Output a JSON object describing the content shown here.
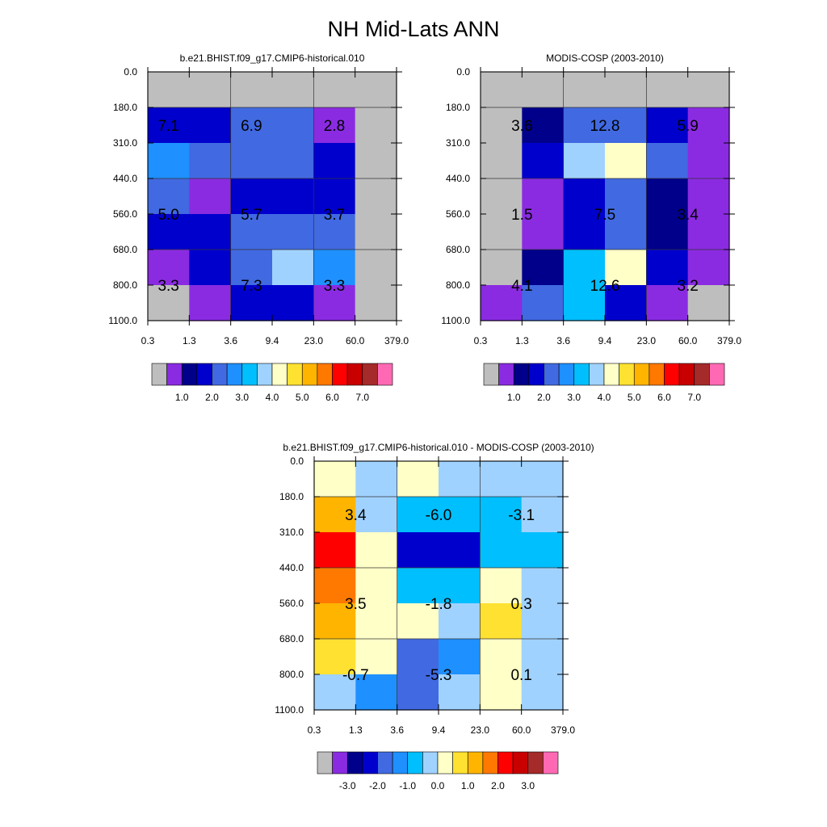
{
  "title": "NH Mid-Lats ANN",
  "chart_data": [
    {
      "type": "heatmap",
      "id": "model",
      "title": "b.e21.BHIST.f09_g17.CMIP6-historical.010",
      "xlabel": "",
      "ylabel": "",
      "x_tick_labels": [
        "0.3",
        "1.3",
        "3.6",
        "9.4",
        "23.0",
        "60.0",
        "379.0"
      ],
      "y_tick_labels": [
        "0.0",
        "180.0",
        "310.0",
        "440.0",
        "560.0",
        "680.0",
        "800.0",
        "1100.0"
      ],
      "cell_color_index": [
        [
          0,
          0,
          0,
          0,
          0,
          0
        ],
        [
          3,
          3,
          4,
          4,
          1,
          0
        ],
        [
          5,
          4,
          4,
          4,
          3,
          0
        ],
        [
          4,
          1,
          3,
          3,
          3,
          0
        ],
        [
          3,
          3,
          4,
          4,
          4,
          0
        ],
        [
          1,
          3,
          4,
          7,
          5,
          0
        ],
        [
          0,
          1,
          3,
          3,
          1,
          0
        ]
      ],
      "value_labels": [
        {
          "text": "7.1",
          "col": 0.5,
          "row": 1.5
        },
        {
          "text": "6.9",
          "col": 2.5,
          "row": 1.5
        },
        {
          "text": "2.8",
          "col": 4.5,
          "row": 1.5
        },
        {
          "text": "5.0",
          "col": 0.5,
          "row": 4.0
        },
        {
          "text": "5.7",
          "col": 2.5,
          "row": 4.0
        },
        {
          "text": "3.7",
          "col": 4.5,
          "row": 4.0
        },
        {
          "text": "3.3",
          "col": 0.5,
          "row": 6.0
        },
        {
          "text": "7.3",
          "col": 2.5,
          "row": 6.0
        },
        {
          "text": "3.3",
          "col": 4.5,
          "row": 6.0
        }
      ],
      "colorbar": {
        "colors": [
          "#bebebe",
          "#8a2be2",
          "#00008b",
          "#0000cd",
          "#4169e1",
          "#1e90ff",
          "#00bfff",
          "#a0d2ff",
          "#ffffc8",
          "#ffe132",
          "#ffb400",
          "#ff7800",
          "#ff0000",
          "#c80000",
          "#a52a2a",
          "#ff69b4"
        ],
        "tick_labels": [
          "1.0",
          "2.0",
          "3.0",
          "4.0",
          "5.0",
          "6.0",
          "7.0"
        ]
      }
    },
    {
      "type": "heatmap",
      "id": "obs",
      "title": "MODIS-COSP (2003-2010)",
      "xlabel": "",
      "ylabel": "",
      "x_tick_labels": [
        "0.3",
        "1.3",
        "3.6",
        "9.4",
        "23.0",
        "60.0",
        "379.0"
      ],
      "y_tick_labels": [
        "0.0",
        "180.0",
        "310.0",
        "440.0",
        "560.0",
        "680.0",
        "800.0",
        "1100.0"
      ],
      "cell_color_index": [
        [
          0,
          0,
          0,
          0,
          0,
          0
        ],
        [
          0,
          2,
          4,
          4,
          3,
          1
        ],
        [
          0,
          3,
          7,
          8,
          4,
          1
        ],
        [
          0,
          1,
          3,
          4,
          2,
          1
        ],
        [
          0,
          1,
          3,
          4,
          2,
          1
        ],
        [
          0,
          2,
          6,
          8,
          3,
          1
        ],
        [
          1,
          4,
          6,
          3,
          1,
          0
        ]
      ],
      "value_labels": [
        {
          "text": "3.6",
          "col": 1.0,
          "row": 1.5
        },
        {
          "text": "12.8",
          "col": 3.0,
          "row": 1.5
        },
        {
          "text": "5.9",
          "col": 5.0,
          "row": 1.5
        },
        {
          "text": "1.5",
          "col": 1.0,
          "row": 4.0
        },
        {
          "text": "7.5",
          "col": 3.0,
          "row": 4.0
        },
        {
          "text": "3.4",
          "col": 5.0,
          "row": 4.0
        },
        {
          "text": "4.1",
          "col": 1.0,
          "row": 6.0
        },
        {
          "text": "12.6",
          "col": 3.0,
          "row": 6.0
        },
        {
          "text": "3.2",
          "col": 5.0,
          "row": 6.0
        }
      ],
      "colorbar": {
        "colors": [
          "#bebebe",
          "#8a2be2",
          "#00008b",
          "#0000cd",
          "#4169e1",
          "#1e90ff",
          "#00bfff",
          "#a0d2ff",
          "#ffffc8",
          "#ffe132",
          "#ffb400",
          "#ff7800",
          "#ff0000",
          "#c80000",
          "#a52a2a",
          "#ff69b4"
        ],
        "tick_labels": [
          "1.0",
          "2.0",
          "3.0",
          "4.0",
          "5.0",
          "6.0",
          "7.0"
        ]
      }
    },
    {
      "type": "heatmap",
      "id": "diff",
      "title": "b.e21.BHIST.f09_g17.CMIP6-historical.010 - MODIS-COSP (2003-2010)",
      "xlabel": "",
      "ylabel": "",
      "x_tick_labels": [
        "0.3",
        "1.3",
        "3.6",
        "9.4",
        "23.0",
        "60.0",
        "379.0"
      ],
      "y_tick_labels": [
        "0.0",
        "180.0",
        "310.0",
        "440.0",
        "560.0",
        "680.0",
        "800.0",
        "1100.0"
      ],
      "cell_color_index": [
        [
          8,
          7,
          8,
          7,
          7,
          7
        ],
        [
          10,
          7,
          6,
          6,
          6,
          7
        ],
        [
          12,
          8,
          3,
          3,
          6,
          6
        ],
        [
          11,
          8,
          6,
          6,
          8,
          7
        ],
        [
          10,
          8,
          8,
          7,
          9,
          7
        ],
        [
          9,
          8,
          4,
          5,
          8,
          7
        ],
        [
          7,
          5,
          4,
          7,
          8,
          7
        ]
      ],
      "value_labels": [
        {
          "text": "3.4",
          "col": 1.0,
          "row": 1.5
        },
        {
          "text": "-6.0",
          "col": 3.0,
          "row": 1.5
        },
        {
          "text": "-3.1",
          "col": 5.0,
          "row": 1.5
        },
        {
          "text": "3.5",
          "col": 1.0,
          "row": 4.0
        },
        {
          "text": "-1.8",
          "col": 3.0,
          "row": 4.0
        },
        {
          "text": "0.3",
          "col": 5.0,
          "row": 4.0
        },
        {
          "text": "-0.7",
          "col": 1.0,
          "row": 6.0
        },
        {
          "text": "-5.3",
          "col": 3.0,
          "row": 6.0
        },
        {
          "text": "0.1",
          "col": 5.0,
          "row": 6.0
        }
      ],
      "colorbar": {
        "colors": [
          "#bebebe",
          "#8a2be2",
          "#00008b",
          "#0000cd",
          "#4169e1",
          "#1e90ff",
          "#00bfff",
          "#a0d2ff",
          "#ffffc8",
          "#ffe132",
          "#ffb400",
          "#ff7800",
          "#ff0000",
          "#c80000",
          "#a52a2a",
          "#ff69b4"
        ],
        "tick_labels": [
          "-3.0",
          "-2.0",
          "-1.0",
          "0.0",
          "1.0",
          "2.0",
          "3.0"
        ]
      }
    }
  ]
}
